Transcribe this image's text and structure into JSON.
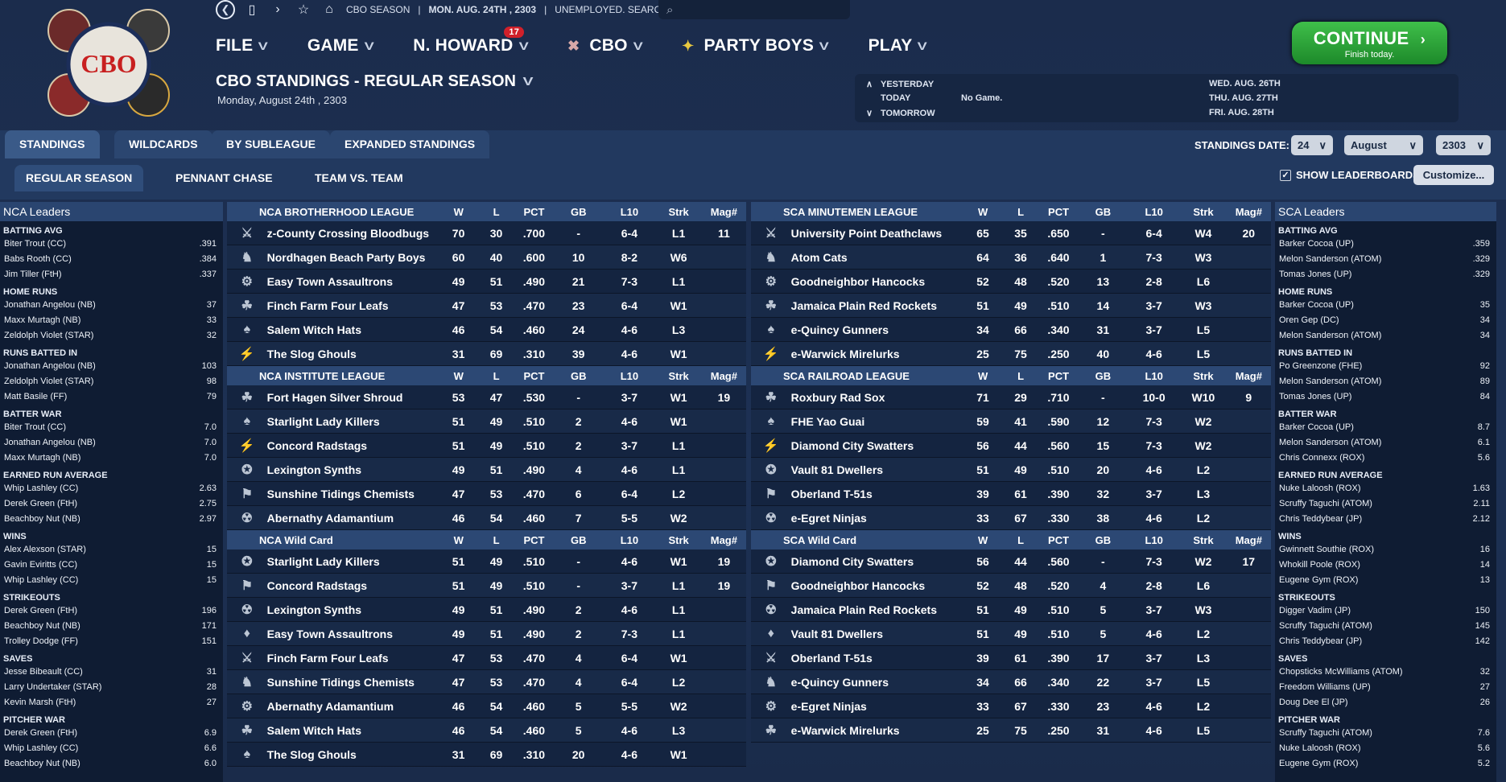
{
  "topbar": {
    "items": [
      "CBO SEASON",
      "MON. AUG. 24TH , 2303",
      "UNEMPLOYED. SEARCH JOBS..."
    ]
  },
  "nav": [
    {
      "label": "FILE"
    },
    {
      "label": "GAME"
    },
    {
      "label": "N. HOWARD",
      "badge": "17"
    },
    {
      "label": "CBO"
    },
    {
      "label": "PARTY BOYS"
    },
    {
      "label": "PLAY"
    }
  ],
  "page": {
    "title": "CBO STANDINGS - REGULAR SEASON",
    "date": "Monday, August 24th , 2303"
  },
  "logo": {
    "text": "CBO"
  },
  "schedule": {
    "yesterday": "YESTERDAY",
    "today": "TODAY",
    "today_game": "No Game.",
    "tomorrow": "TOMORROW",
    "dates": [
      "WED. AUG. 26TH",
      "THU. AUG. 27TH",
      "FRI. AUG. 28TH"
    ]
  },
  "continue": {
    "label": "CONTINUE",
    "sub": "Finish today."
  },
  "tabs": [
    "STANDINGS",
    "WILDCARDS",
    "BY SUBLEAGUE",
    "EXPANDED STANDINGS"
  ],
  "subtabs": [
    "REGULAR SEASON",
    "PENNANT CHASE",
    "TEAM VS. TEAM"
  ],
  "standings_date": {
    "label": "STANDINGS DATE:",
    "day": "24",
    "month": "August",
    "year": "2303"
  },
  "show_leaderboards": "SHOW LEADERBOARDS",
  "customize": "Customize...",
  "columns": [
    "W",
    "L",
    "PCT",
    "GB",
    "L10",
    "Strk",
    "Mag#"
  ],
  "nca_leaders": {
    "title": "NCA Leaders",
    "cats": [
      {
        "name": "BATTING AVG",
        "rows": [
          [
            "Biter Trout (CC)",
            ".391"
          ],
          [
            "Babs Rooth (CC)",
            ".384"
          ],
          [
            "Jim Tiller (FtH)",
            ".337"
          ]
        ]
      },
      {
        "name": "HOME RUNS",
        "rows": [
          [
            "Jonathan Angelou (NB)",
            "37"
          ],
          [
            "Maxx Murtagh (NB)",
            "33"
          ],
          [
            "Zeldolph Violet (STAR)",
            "32"
          ]
        ]
      },
      {
        "name": "RUNS BATTED IN",
        "rows": [
          [
            "Jonathan Angelou (NB)",
            "103"
          ],
          [
            "Zeldolph Violet (STAR)",
            "98"
          ],
          [
            "Matt Basile (FF)",
            "79"
          ]
        ]
      },
      {
        "name": "BATTER WAR",
        "rows": [
          [
            "Biter Trout (CC)",
            "7.0"
          ],
          [
            "Jonathan Angelou (NB)",
            "7.0"
          ],
          [
            "Maxx Murtagh (NB)",
            "7.0"
          ]
        ]
      },
      {
        "name": "EARNED RUN AVERAGE",
        "rows": [
          [
            "Whip Lashley (CC)",
            "2.63"
          ],
          [
            "Derek Green (FtH)",
            "2.75"
          ],
          [
            "Beachboy Nut (NB)",
            "2.97"
          ]
        ]
      },
      {
        "name": "WINS",
        "rows": [
          [
            "Alex Alexson (STAR)",
            "15"
          ],
          [
            "Gavin Eviritts (CC)",
            "15"
          ],
          [
            "Whip Lashley (CC)",
            "15"
          ]
        ]
      },
      {
        "name": "STRIKEOUTS",
        "rows": [
          [
            "Derek Green (FtH)",
            "196"
          ],
          [
            "Beachboy Nut (NB)",
            "171"
          ],
          [
            "Trolley Dodge (FF)",
            "151"
          ]
        ]
      },
      {
        "name": "SAVES",
        "rows": [
          [
            "Jesse Bibeault (CC)",
            "31"
          ],
          [
            "Larry Undertaker (STAR)",
            "28"
          ],
          [
            "Kevin Marsh (FtH)",
            "27"
          ]
        ]
      },
      {
        "name": "PITCHER WAR",
        "rows": [
          [
            "Derek Green (FtH)",
            "6.9"
          ],
          [
            "Whip Lashley (CC)",
            "6.6"
          ],
          [
            "Beachboy Nut (NB)",
            "6.0"
          ]
        ]
      }
    ]
  },
  "sca_leaders": {
    "title": "SCA Leaders",
    "cats": [
      {
        "name": "BATTING AVG",
        "rows": [
          [
            "Barker Cocoa (UP)",
            ".359"
          ],
          [
            "Melon Sanderson (ATOM)",
            ".329"
          ],
          [
            "Tomas Jones (UP)",
            ".329"
          ]
        ]
      },
      {
        "name": "HOME RUNS",
        "rows": [
          [
            "Barker Cocoa (UP)",
            "35"
          ],
          [
            "Oren Gep (DC)",
            "34"
          ],
          [
            "Melon Sanderson (ATOM)",
            "34"
          ]
        ]
      },
      {
        "name": "RUNS BATTED IN",
        "rows": [
          [
            "Po Greenzone (FHE)",
            "92"
          ],
          [
            "Melon Sanderson (ATOM)",
            "89"
          ],
          [
            "Tomas Jones (UP)",
            "84"
          ]
        ]
      },
      {
        "name": "BATTER WAR",
        "rows": [
          [
            "Barker Cocoa (UP)",
            "8.7"
          ],
          [
            "Melon Sanderson (ATOM)",
            "6.1"
          ],
          [
            "Chris Connexx (ROX)",
            "5.6"
          ]
        ]
      },
      {
        "name": "EARNED RUN AVERAGE",
        "rows": [
          [
            "Nuke Laloosh (ROX)",
            "1.63"
          ],
          [
            "Scruffy Taguchi (ATOM)",
            "2.11"
          ],
          [
            "Chris Teddybear (JP)",
            "2.12"
          ]
        ]
      },
      {
        "name": "WINS",
        "rows": [
          [
            "Gwinnett Southie (ROX)",
            "16"
          ],
          [
            "Whokill Poole (ROX)",
            "14"
          ],
          [
            "Eugene Gym (ROX)",
            "13"
          ]
        ]
      },
      {
        "name": "STRIKEOUTS",
        "rows": [
          [
            "Digger Vadim (JP)",
            "150"
          ],
          [
            "Scruffy Taguchi (ATOM)",
            "145"
          ],
          [
            "Chris Teddybear (JP)",
            "142"
          ]
        ]
      },
      {
        "name": "SAVES",
        "rows": [
          [
            "Chopsticks McWilliams (ATOM)",
            "32"
          ],
          [
            "Freedom Williams (UP)",
            "27"
          ],
          [
            "Doug Dee El (JP)",
            "26"
          ]
        ]
      },
      {
        "name": "PITCHER WAR",
        "rows": [
          [
            "Scruffy Taguchi (ATOM)",
            "7.6"
          ],
          [
            "Nuke Laloosh (ROX)",
            "5.6"
          ],
          [
            "Eugene Gym (ROX)",
            "5.2"
          ]
        ]
      }
    ]
  },
  "left_sections": [
    {
      "title": "NCA BROTHERHOOD LEAGUE",
      "rows": [
        [
          "z-County Crossing Bloodbugs",
          "70",
          "30",
          ".700",
          "-",
          "6-4",
          "L1",
          "11"
        ],
        [
          "Nordhagen Beach Party Boys",
          "60",
          "40",
          ".600",
          "10",
          "8-2",
          "W6",
          ""
        ],
        [
          "Easy Town Assaultrons",
          "49",
          "51",
          ".490",
          "21",
          "7-3",
          "L1",
          ""
        ],
        [
          "Finch Farm Four Leafs",
          "47",
          "53",
          ".470",
          "23",
          "6-4",
          "W1",
          ""
        ],
        [
          "Salem Witch Hats",
          "46",
          "54",
          ".460",
          "24",
          "4-6",
          "L3",
          ""
        ],
        [
          "The Slog Ghouls",
          "31",
          "69",
          ".310",
          "39",
          "4-6",
          "W1",
          ""
        ]
      ]
    },
    {
      "title": "NCA INSTITUTE LEAGUE",
      "rows": [
        [
          "Fort Hagen Silver Shroud",
          "53",
          "47",
          ".530",
          "-",
          "3-7",
          "W1",
          "19"
        ],
        [
          "Starlight Lady Killers",
          "51",
          "49",
          ".510",
          "2",
          "4-6",
          "W1",
          ""
        ],
        [
          "Concord Radstags",
          "51",
          "49",
          ".510",
          "2",
          "3-7",
          "L1",
          ""
        ],
        [
          "Lexington Synths",
          "49",
          "51",
          ".490",
          "4",
          "4-6",
          "L1",
          ""
        ],
        [
          "Sunshine Tidings Chemists",
          "47",
          "53",
          ".470",
          "6",
          "6-4",
          "L2",
          ""
        ],
        [
          "Abernathy Adamantium",
          "46",
          "54",
          ".460",
          "7",
          "5-5",
          "W2",
          ""
        ]
      ]
    },
    {
      "title": "NCA  Wild Card",
      "rows": [
        [
          "Starlight Lady Killers",
          "51",
          "49",
          ".510",
          "-",
          "4-6",
          "W1",
          "19"
        ],
        [
          "Concord Radstags",
          "51",
          "49",
          ".510",
          "-",
          "3-7",
          "L1",
          "19"
        ],
        [
          "Lexington Synths",
          "49",
          "51",
          ".490",
          "2",
          "4-6",
          "L1",
          ""
        ],
        [
          "Easy Town Assaultrons",
          "49",
          "51",
          ".490",
          "2",
          "7-3",
          "L1",
          ""
        ],
        [
          "Finch Farm Four Leafs",
          "47",
          "53",
          ".470",
          "4",
          "6-4",
          "W1",
          ""
        ],
        [
          "Sunshine Tidings Chemists",
          "47",
          "53",
          ".470",
          "4",
          "6-4",
          "L2",
          ""
        ],
        [
          "Abernathy Adamantium",
          "46",
          "54",
          ".460",
          "5",
          "5-5",
          "W2",
          ""
        ],
        [
          "Salem Witch Hats",
          "46",
          "54",
          ".460",
          "5",
          "4-6",
          "L3",
          ""
        ],
        [
          "The Slog Ghouls",
          "31",
          "69",
          ".310",
          "20",
          "4-6",
          "W1",
          ""
        ]
      ]
    }
  ],
  "right_sections": [
    {
      "title": "SCA MINUTEMEN LEAGUE",
      "rows": [
        [
          "University Point Deathclaws",
          "65",
          "35",
          ".650",
          "-",
          "6-4",
          "W4",
          "20"
        ],
        [
          "Atom Cats",
          "64",
          "36",
          ".640",
          "1",
          "7-3",
          "W3",
          ""
        ],
        [
          "Goodneighbor Hancocks",
          "52",
          "48",
          ".520",
          "13",
          "2-8",
          "L6",
          ""
        ],
        [
          "Jamaica Plain Red Rockets",
          "51",
          "49",
          ".510",
          "14",
          "3-7",
          "W3",
          ""
        ],
        [
          "e-Quincy Gunners",
          "34",
          "66",
          ".340",
          "31",
          "3-7",
          "L5",
          ""
        ],
        [
          "e-Warwick Mirelurks",
          "25",
          "75",
          ".250",
          "40",
          "4-6",
          "L5",
          ""
        ]
      ]
    },
    {
      "title": "SCA RAILROAD LEAGUE",
      "rows": [
        [
          "Roxbury Rad Sox",
          "71",
          "29",
          ".710",
          "-",
          "10-0",
          "W10",
          "9"
        ],
        [
          "FHE Yao Guai",
          "59",
          "41",
          ".590",
          "12",
          "7-3",
          "W2",
          ""
        ],
        [
          "Diamond City Swatters",
          "56",
          "44",
          ".560",
          "15",
          "7-3",
          "W2",
          ""
        ],
        [
          "Vault 81 Dwellers",
          "51",
          "49",
          ".510",
          "20",
          "4-6",
          "L2",
          ""
        ],
        [
          "Oberland T-51s",
          "39",
          "61",
          ".390",
          "32",
          "3-7",
          "L3",
          ""
        ],
        [
          "e-Egret Ninjas",
          "33",
          "67",
          ".330",
          "38",
          "4-6",
          "L2",
          ""
        ]
      ]
    },
    {
      "title": "SCA  Wild Card",
      "rows": [
        [
          "Diamond City Swatters",
          "56",
          "44",
          ".560",
          "-",
          "7-3",
          "W2",
          "17"
        ],
        [
          "Goodneighbor Hancocks",
          "52",
          "48",
          ".520",
          "4",
          "2-8",
          "L6",
          ""
        ],
        [
          "Jamaica Plain Red Rockets",
          "51",
          "49",
          ".510",
          "5",
          "3-7",
          "W3",
          ""
        ],
        [
          "Vault 81 Dwellers",
          "51",
          "49",
          ".510",
          "5",
          "4-6",
          "L2",
          ""
        ],
        [
          "Oberland T-51s",
          "39",
          "61",
          ".390",
          "17",
          "3-7",
          "L3",
          ""
        ],
        [
          "e-Quincy Gunners",
          "34",
          "66",
          ".340",
          "22",
          "3-7",
          "L5",
          ""
        ],
        [
          "e-Egret Ninjas",
          "33",
          "67",
          ".330",
          "23",
          "4-6",
          "L2",
          ""
        ],
        [
          "e-Warwick Mirelurks",
          "25",
          "75",
          ".250",
          "31",
          "4-6",
          "L5",
          ""
        ]
      ]
    }
  ]
}
